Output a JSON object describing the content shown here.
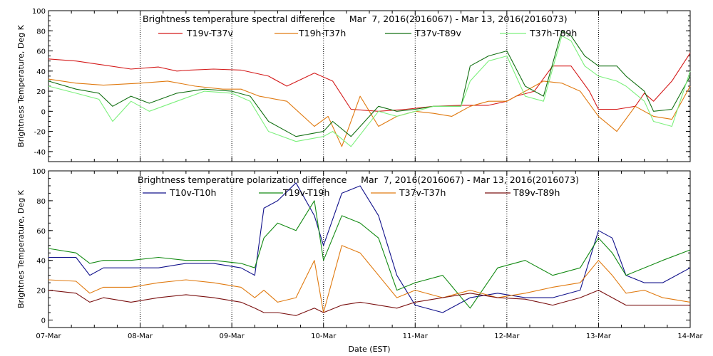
{
  "chart_data": [
    {
      "type": "line",
      "title": "Brightness temperature spectral difference     Mar  7, 2016(2016067) - Mar 13, 2016(2016073)",
      "ylabel": "Brightness Temperature, Deg K",
      "ylim": [
        -50,
        100
      ],
      "yticks": [
        -40,
        -20,
        0,
        20,
        40,
        60,
        80,
        100
      ],
      "xlim": [
        0,
        7
      ],
      "grid": "dotted vertical at day boundaries",
      "legend_placement": "top",
      "series": [
        {
          "name": "T19v-T37v",
          "color": "#d41a1a",
          "x": [
            0,
            0.3,
            0.6,
            0.9,
            1.2,
            1.4,
            1.55,
            1.8,
            2.1,
            2.4,
            2.6,
            2.9,
            3.1,
            3.3,
            3.6,
            3.9,
            4.2,
            4.5,
            4.8,
            5.0,
            5.1,
            5.3,
            5.5,
            5.7,
            5.9,
            6.0,
            6.2,
            6.4,
            6.5,
            6.6,
            6.8,
            7.0
          ],
          "values": [
            52,
            50,
            46,
            42,
            44,
            40,
            41,
            42,
            41,
            35,
            25,
            38,
            30,
            2,
            0,
            2,
            5,
            6,
            6,
            10,
            15,
            20,
            45,
            45,
            20,
            2,
            2,
            5,
            18,
            10,
            30,
            58
          ]
        },
        {
          "name": "T19h-T37h",
          "color": "#e07a10",
          "x": [
            0,
            0.3,
            0.6,
            1.0,
            1.3,
            1.6,
            1.9,
            2.1,
            2.3,
            2.6,
            2.9,
            3.05,
            3.2,
            3.4,
            3.6,
            3.8,
            4.0,
            4.2,
            4.4,
            4.6,
            4.8,
            5.0,
            5.2,
            5.4,
            5.6,
            5.8,
            6.0,
            6.2,
            6.4,
            6.6,
            6.8,
            7.0
          ],
          "values": [
            32,
            28,
            26,
            28,
            30,
            25,
            22,
            22,
            15,
            10,
            -15,
            -5,
            -35,
            15,
            -15,
            -5,
            0,
            -2,
            -5,
            5,
            10,
            10,
            20,
            30,
            28,
            20,
            -5,
            -20,
            5,
            -5,
            -8,
            25
          ]
        },
        {
          "name": "T37v-T89v",
          "color": "#137013",
          "x": [
            0,
            0.3,
            0.55,
            0.7,
            0.9,
            1.1,
            1.4,
            1.7,
            2.0,
            2.2,
            2.4,
            2.7,
            3.0,
            3.1,
            3.3,
            3.6,
            3.8,
            4.0,
            4.2,
            4.5,
            4.6,
            4.8,
            5.0,
            5.2,
            5.4,
            5.6,
            5.7,
            5.85,
            6.0,
            6.2,
            6.3,
            6.5,
            6.6,
            6.8,
            7.0
          ],
          "values": [
            30,
            22,
            18,
            5,
            15,
            8,
            18,
            22,
            20,
            15,
            -10,
            -25,
            -20,
            -10,
            -25,
            5,
            0,
            2,
            5,
            5,
            45,
            55,
            60,
            25,
            15,
            80,
            75,
            55,
            45,
            45,
            35,
            20,
            0,
            2,
            35
          ]
        },
        {
          "name": "T37h-T89h",
          "color": "#7cf07c",
          "x": [
            0,
            0.3,
            0.55,
            0.7,
            0.9,
            1.1,
            1.4,
            1.7,
            2.0,
            2.2,
            2.4,
            2.7,
            3.0,
            3.1,
            3.3,
            3.6,
            3.8,
            4.0,
            4.2,
            4.5,
            4.6,
            4.8,
            5.0,
            5.2,
            5.4,
            5.6,
            5.7,
            5.85,
            6.0,
            6.2,
            6.3,
            6.5,
            6.6,
            6.8,
            7.0
          ],
          "values": [
            25,
            18,
            12,
            -10,
            10,
            0,
            10,
            20,
            18,
            10,
            -20,
            -30,
            -25,
            -20,
            -35,
            0,
            -5,
            0,
            5,
            5,
            30,
            50,
            55,
            15,
            10,
            75,
            70,
            45,
            35,
            30,
            25,
            10,
            -10,
            -15,
            40
          ]
        }
      ]
    },
    {
      "type": "line",
      "title": "Brightness temperature polarization difference     Mar  7, 2016(2016067) - Mar 13, 2016(2016073)",
      "ylabel": "Brightnes Temperature, Deg K",
      "xlabel": "Date (EST)",
      "ylim": [
        -5,
        100
      ],
      "yticks": [
        0,
        20,
        40,
        60,
        80,
        100
      ],
      "xlim": [
        0,
        7
      ],
      "xticks": [
        "07-Mar",
        "08-Mar",
        "09-Mar",
        "10-Mar",
        "11-Mar",
        "12-Mar",
        "13-Mar",
        "14-Mar"
      ],
      "grid": "dotted vertical at day boundaries",
      "legend_placement": "top",
      "series": [
        {
          "name": "T10v-T10h",
          "color": "#10108a",
          "x": [
            0,
            0.3,
            0.45,
            0.6,
            0.9,
            1.2,
            1.5,
            1.8,
            2.1,
            2.25,
            2.35,
            2.5,
            2.7,
            2.9,
            3.0,
            3.2,
            3.4,
            3.6,
            3.8,
            4.0,
            4.3,
            4.6,
            4.9,
            5.2,
            5.5,
            5.8,
            6.0,
            6.15,
            6.3,
            6.5,
            6.7,
            7.0
          ],
          "values": [
            42,
            42,
            30,
            35,
            35,
            35,
            38,
            38,
            35,
            30,
            75,
            80,
            92,
            70,
            50,
            85,
            90,
            70,
            30,
            10,
            5,
            15,
            18,
            15,
            15,
            20,
            60,
            55,
            30,
            25,
            25,
            35
          ]
        },
        {
          "name": "T19v-T19h",
          "color": "#138a13",
          "x": [
            0,
            0.3,
            0.45,
            0.6,
            0.9,
            1.2,
            1.5,
            1.8,
            2.1,
            2.25,
            2.35,
            2.5,
            2.7,
            2.9,
            3.0,
            3.2,
            3.4,
            3.6,
            3.8,
            4.0,
            4.3,
            4.6,
            4.9,
            5.2,
            5.5,
            5.8,
            6.0,
            6.15,
            6.3,
            6.5,
            6.7,
            7.0
          ],
          "values": [
            48,
            45,
            38,
            40,
            40,
            42,
            40,
            40,
            38,
            35,
            55,
            65,
            60,
            80,
            40,
            70,
            65,
            55,
            20,
            25,
            30,
            8,
            35,
            40,
            30,
            35,
            55,
            45,
            30,
            35,
            40,
            47
          ]
        },
        {
          "name": "T37v-T37h",
          "color": "#e07a10",
          "x": [
            0,
            0.3,
            0.45,
            0.6,
            0.9,
            1.2,
            1.5,
            1.8,
            2.1,
            2.25,
            2.35,
            2.5,
            2.7,
            2.9,
            3.0,
            3.2,
            3.4,
            3.6,
            3.8,
            4.0,
            4.3,
            4.6,
            4.9,
            5.2,
            5.5,
            5.8,
            6.0,
            6.15,
            6.3,
            6.5,
            6.7,
            7.0
          ],
          "values": [
            27,
            26,
            18,
            22,
            22,
            25,
            27,
            25,
            22,
            15,
            20,
            12,
            15,
            40,
            5,
            50,
            45,
            30,
            15,
            20,
            15,
            20,
            15,
            18,
            22,
            25,
            40,
            30,
            18,
            20,
            15,
            12
          ]
        },
        {
          "name": "T89v-T89h",
          "color": "#7a1010",
          "x": [
            0,
            0.3,
            0.45,
            0.6,
            0.9,
            1.2,
            1.5,
            1.8,
            2.1,
            2.25,
            2.35,
            2.5,
            2.7,
            2.9,
            3.0,
            3.2,
            3.4,
            3.6,
            3.8,
            4.0,
            4.3,
            4.6,
            4.9,
            5.2,
            5.5,
            5.8,
            6.0,
            6.15,
            6.3,
            6.5,
            6.7,
            7.0
          ],
          "values": [
            20,
            18,
            12,
            15,
            12,
            15,
            17,
            15,
            12,
            8,
            5,
            5,
            3,
            8,
            5,
            10,
            12,
            10,
            8,
            12,
            15,
            18,
            15,
            14,
            10,
            15,
            20,
            15,
            10,
            10,
            10,
            10
          ]
        }
      ]
    }
  ]
}
